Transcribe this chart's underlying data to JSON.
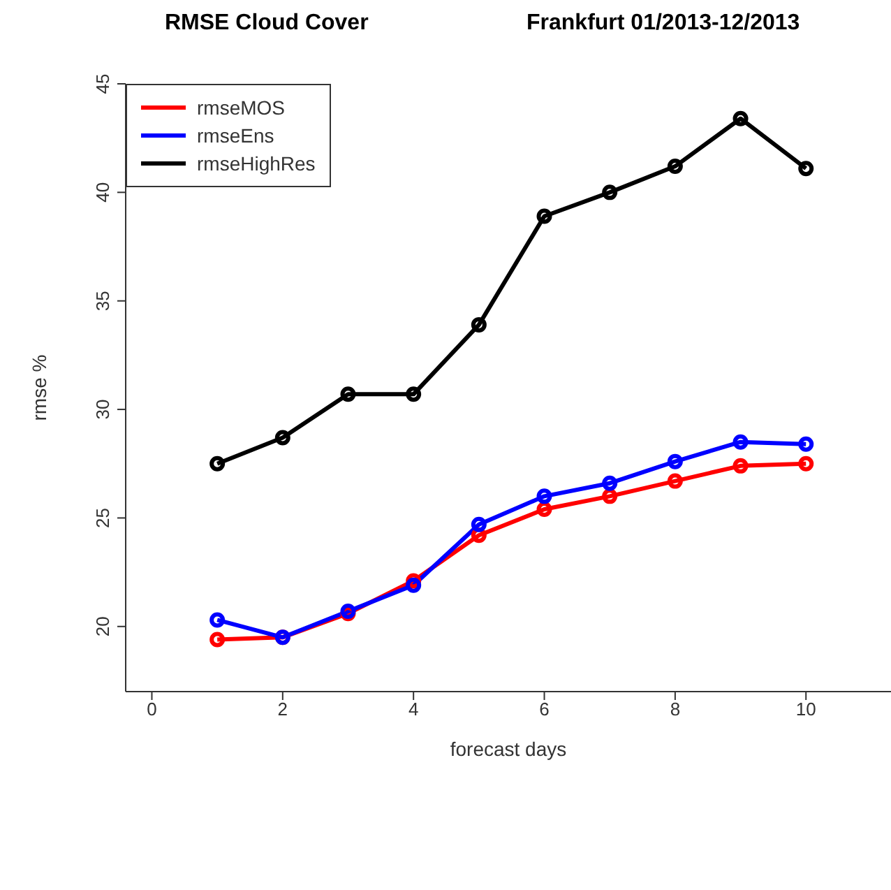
{
  "chart_data": {
    "type": "line",
    "title": "RMSE Cloud Cover",
    "subtitle": "Frankfurt 01/2013-12/2013",
    "xlabel": "forecast days",
    "ylabel": "rmse %",
    "x": [
      1,
      2,
      3,
      4,
      5,
      6,
      7,
      8,
      9,
      10
    ],
    "series": [
      {
        "name": "rmseMOS",
        "color": "#ff0000",
        "values": [
          19.4,
          19.5,
          20.6,
          22.1,
          24.2,
          25.4,
          26.0,
          26.7,
          27.4,
          27.5
        ]
      },
      {
        "name": "rmseEns",
        "color": "#0000ff",
        "values": [
          20.3,
          19.5,
          20.7,
          21.9,
          24.7,
          26.0,
          26.6,
          27.6,
          28.5,
          28.4
        ]
      },
      {
        "name": "rmseHighRes",
        "color": "#000000",
        "values": [
          27.5,
          28.7,
          30.7,
          30.7,
          33.9,
          38.9,
          40.0,
          41.2,
          43.4,
          41.1
        ]
      }
    ],
    "xlim": [
      -0.4,
      11.3
    ],
    "xticks": [
      0,
      2,
      4,
      6,
      8,
      10
    ],
    "ylim": [
      17,
      45
    ],
    "yticks": [
      20,
      25,
      30,
      35,
      40,
      45
    ],
    "grid": false,
    "legend": "top left",
    "marker": "circle",
    "line_style": "solid"
  }
}
